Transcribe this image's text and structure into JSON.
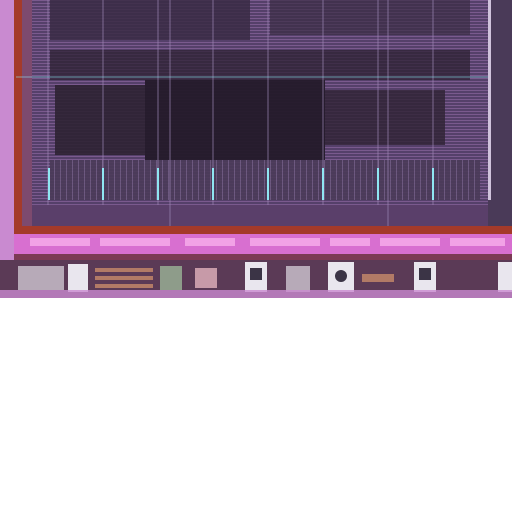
{
  "image": {
    "subject": "die-micrograph-chip-corner",
    "colors": {
      "background": "#ffffff",
      "die_base": "#5a3f6a",
      "core_dark": "#2e2233",
      "core_mid": "#4d3a5c",
      "bus_magenta": "#d86fd0",
      "bus_pink": "#f2a2e6",
      "seal_ring_red": "#a43a2a",
      "trace_cyan": "#8fe6f2",
      "pad_grey": "#b7aab8",
      "pad_light": "#e9e6ee",
      "pad_dark": "#3b3446",
      "copper": "#b27a66"
    }
  }
}
